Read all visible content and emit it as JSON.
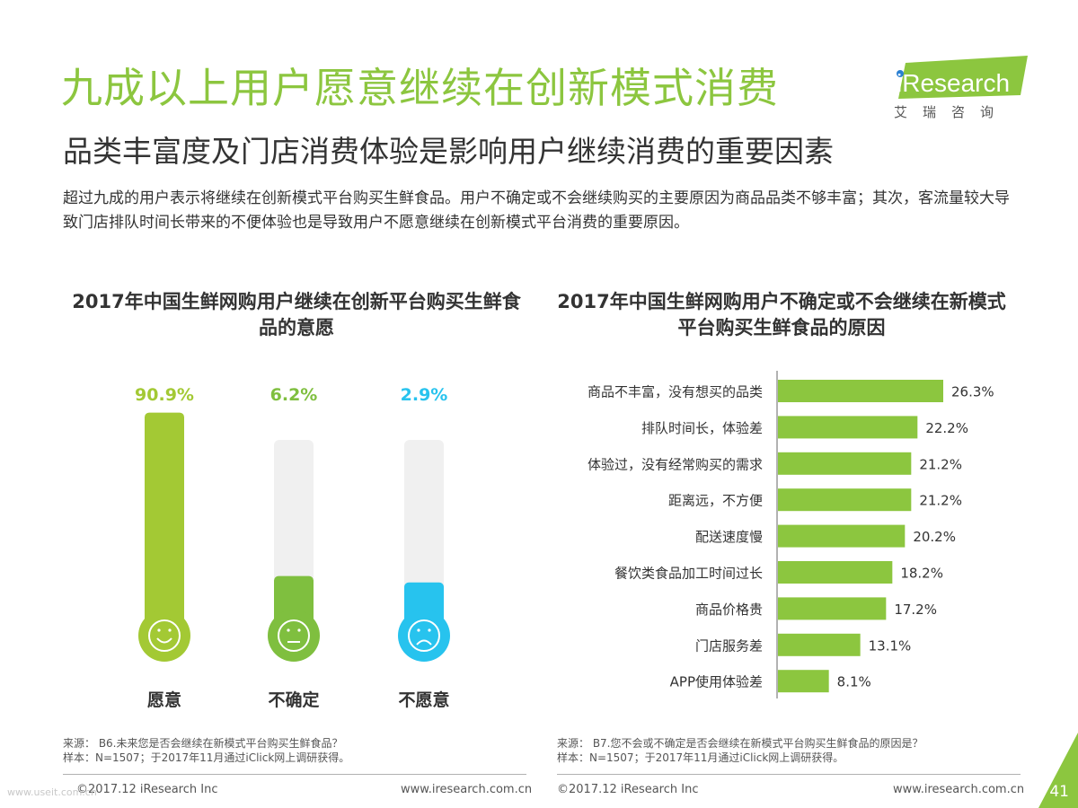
{
  "header": {
    "title": "九成以上用户愿意继续在创新模式消费",
    "subtitle": "品类丰富度及门店消费体验是影响用户继续消费的重要因素",
    "intro": "超过九成的用户表示将继续在创新模式平台购买生鲜食品。用户不确定或不会继续购买的主要原因为商品品类不够丰富；其次，客流量较大导致门店排队时间长带来的不便体验也是导致用户不愿意继续在创新模式平台消费的重要原因。"
  },
  "logo": {
    "brand": "iResearch",
    "tagline": "艾瑞咨询",
    "color": "#8cc63f"
  },
  "chart_data": [
    {
      "type": "bar",
      "title": "2017年中国生鲜网购用户继续在创新平台购买生鲜食品的意愿",
      "categories": [
        "愿意",
        "不确定",
        "不愿意"
      ],
      "values": [
        90.9,
        6.2,
        2.9
      ],
      "value_labels": [
        "90.9%",
        "6.2%",
        "2.9%"
      ],
      "icons": [
        "smile-face-icon",
        "neutral-face-icon",
        "sad-face-icon"
      ],
      "colors": [
        "#a3c934",
        "#7fbf3f",
        "#27c3ee"
      ],
      "ylim": [
        0,
        100
      ],
      "grid": false,
      "source": "来源： B6.未来您是否会继续在新模式平台购买生鲜食品？",
      "sample": "样本：N=1507；于2017年11月通过iClick网上调研获得。"
    },
    {
      "type": "bar",
      "orientation": "horizontal",
      "title": "2017年中国生鲜网购用户不确定或不会继续在新模式平台购买生鲜食品的原因",
      "categories": [
        "商品不丰富，没有想买的品类",
        "排队时间长，体验差",
        "体验过，没有经常购买的需求",
        "距离远，不方便",
        "配送速度慢",
        "餐饮类食品加工时间过长",
        "商品价格贵",
        "门店服务差",
        "APP使用体验差"
      ],
      "values": [
        26.3,
        22.2,
        21.2,
        21.2,
        20.2,
        18.2,
        17.2,
        13.1,
        8.1
      ],
      "value_labels": [
        "26.3%",
        "22.2%",
        "21.2%",
        "21.2%",
        "20.2%",
        "18.2%",
        "17.2%",
        "13.1%",
        "8.1%"
      ],
      "bar_color": "#8cc63f",
      "grid": false,
      "source": "来源： B7.您不会或不确定是否会继续在新模式平台购买生鲜食品的原因是？",
      "sample": "样本：N=1507；于2017年11月通过iClick网上调研获得。"
    }
  ],
  "footer": {
    "copyright": "©2017.12 iResearch Inc",
    "website": "www.iresearch.com.cn",
    "page_number": "41",
    "watermark": "www.useit.com.cn"
  }
}
